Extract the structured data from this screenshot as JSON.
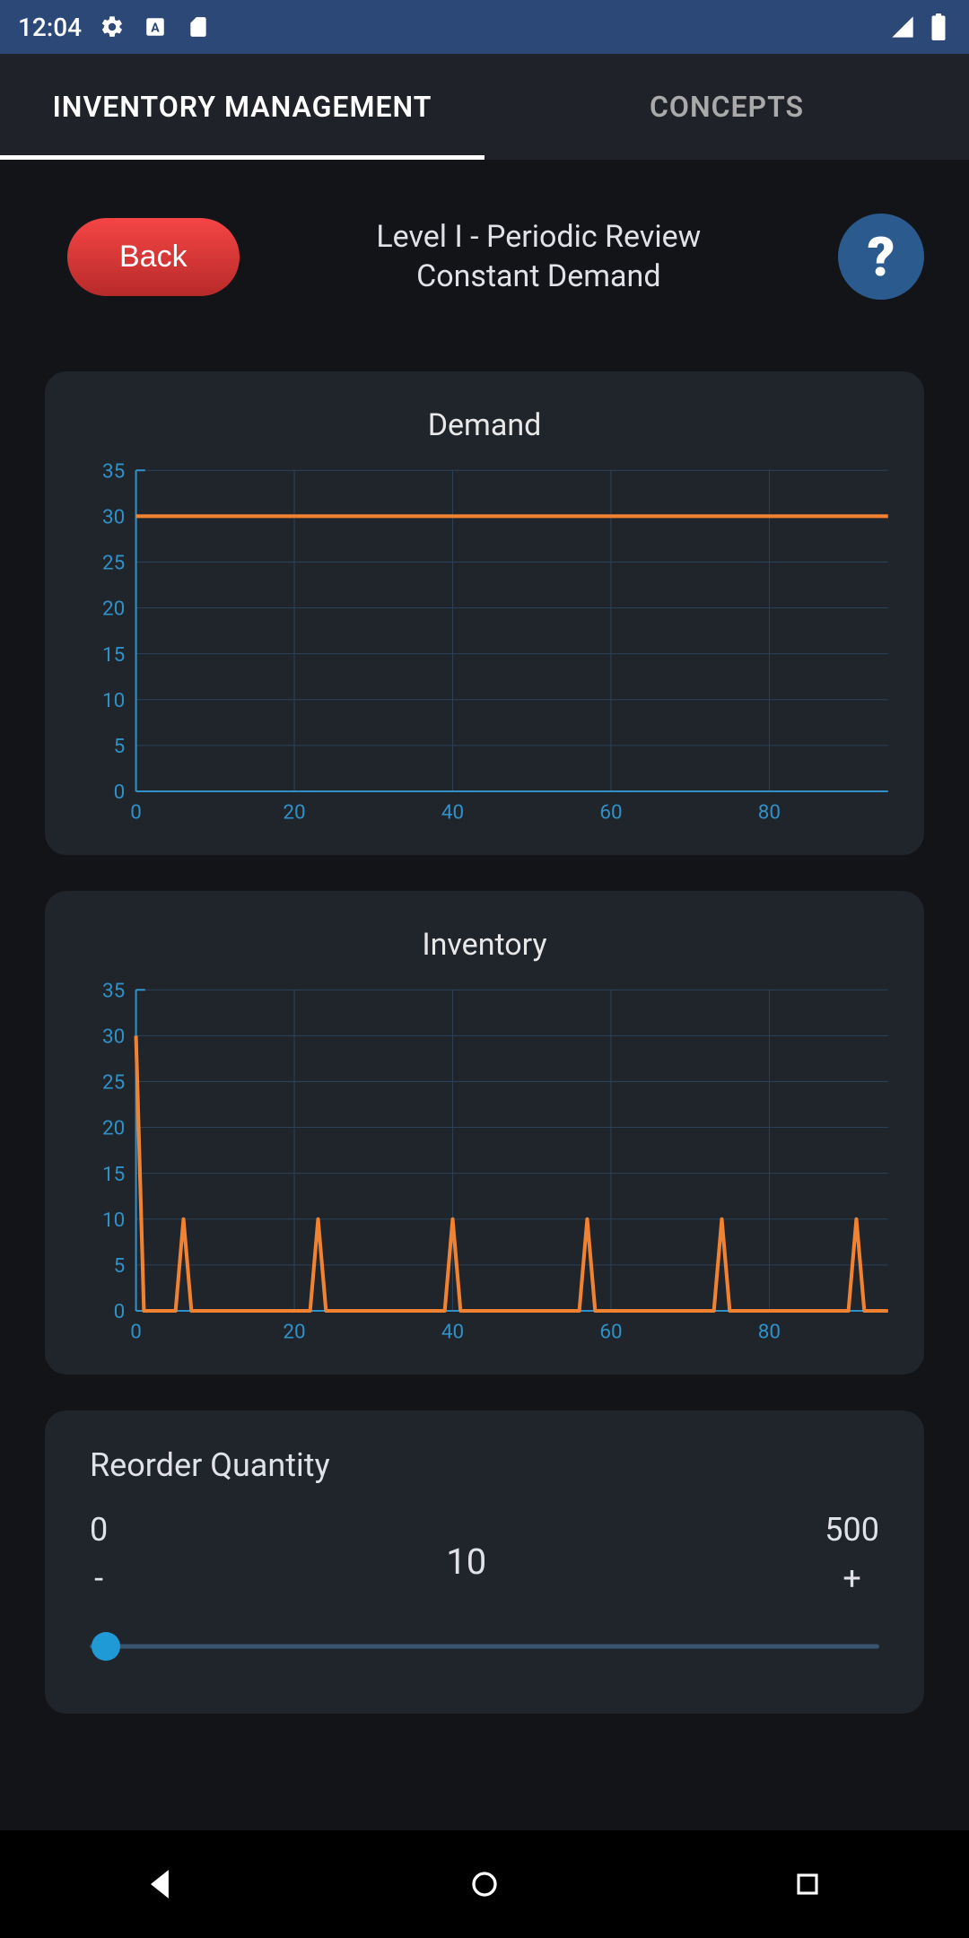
{
  "status": {
    "time": "12:04"
  },
  "tabs": {
    "items": [
      {
        "label": "INVENTORY MANAGEMENT"
      },
      {
        "label": "CONCEPTS"
      }
    ]
  },
  "header": {
    "back_label": "Back",
    "title_line1": "Level I - Periodic Review",
    "title_line2": "Constant Demand",
    "help_glyph": "?"
  },
  "colors": {
    "axis": "#3091c8",
    "axis_label": "#3091c8",
    "grid": "#2b4159",
    "line": "#f08232",
    "card_bg": "#20242b",
    "page_bg": "#121418"
  },
  "chart1": {
    "title": "Demand",
    "type": "line",
    "xlim": [
      0,
      95
    ],
    "ylim": [
      0,
      35
    ],
    "xticks": [
      0,
      20,
      40,
      60,
      80
    ],
    "yticks": [
      0,
      5,
      10,
      15,
      20,
      25,
      30,
      35
    ],
    "line_color": "#f08232",
    "line_width": 4,
    "points": [
      [
        0,
        30
      ],
      [
        95,
        30
      ]
    ]
  },
  "chart2": {
    "title": "Inventory",
    "type": "line",
    "xlim": [
      0,
      95
    ],
    "ylim": [
      0,
      35
    ],
    "xticks": [
      0,
      20,
      40,
      60,
      80
    ],
    "yticks": [
      0,
      5,
      10,
      15,
      20,
      25,
      30,
      35
    ],
    "line_color": "#f08232",
    "line_width": 4,
    "points": [
      [
        0,
        30
      ],
      [
        1,
        0
      ],
      [
        5,
        0
      ],
      [
        6,
        10
      ],
      [
        7,
        0
      ],
      [
        22,
        0
      ],
      [
        23,
        10
      ],
      [
        24,
        0
      ],
      [
        39,
        0
      ],
      [
        40,
        10
      ],
      [
        41,
        0
      ],
      [
        56,
        0
      ],
      [
        57,
        10
      ],
      [
        58,
        0
      ],
      [
        73,
        0
      ],
      [
        74,
        10
      ],
      [
        75,
        0
      ],
      [
        90,
        0
      ],
      [
        91,
        10
      ],
      [
        92,
        0
      ],
      [
        95,
        0
      ]
    ]
  },
  "reorder": {
    "title": "Reorder Quantity",
    "min_label": "0",
    "max_label": "500",
    "value_label": "10",
    "minus": "-",
    "plus": "+",
    "slider_min": 0,
    "slider_max": 500,
    "slider_value": 10
  }
}
